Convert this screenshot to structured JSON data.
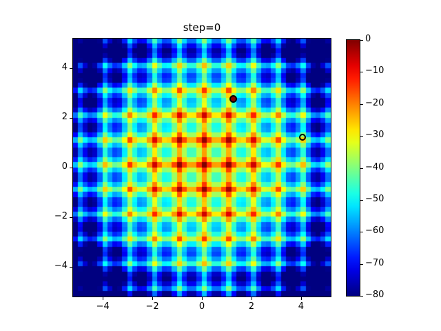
{
  "chart_data": {
    "type": "heatmap",
    "title": "step=0",
    "xlabel": "",
    "ylabel": "",
    "x_ticks": [
      -4,
      -2,
      0,
      2,
      4
    ],
    "y_ticks": [
      4,
      2,
      0,
      -2,
      -4
    ],
    "extent": {
      "xmin": -5.2,
      "xmax": 5.2,
      "ymin": -5.2,
      "ymax": 5.2
    },
    "grid_points": 52,
    "grid_step": 0.2,
    "colormap": "jet",
    "clim": [
      -80,
      0
    ],
    "colorbar_ticks": [
      0,
      -10,
      -20,
      -30,
      -40,
      -50,
      -60,
      -70,
      -80
    ],
    "value_model": {
      "description": "Periodic interference pattern in dB: val(x,y)=prof(res(x))+prof(res(y))-envelope_coef*(dx^2+dy^2), clipped to clim. Peaks on a 1.0-unit lattice offset by peak_lattice_offset; prof gives the dB level of the 5 grid cells per period (0.2 step).",
      "peak_lattice_offset": 0.1,
      "peak_spacing": 1.0,
      "profile_db": [
        0,
        -13,
        -22,
        -22,
        -13
      ],
      "envelope_coef": 1.55
    },
    "scatter_points": [
      {
        "name": "filled-marker",
        "x": 1.27,
        "y": 2.76,
        "fill": "#8b0000",
        "edge": "#000000",
        "size": 11
      },
      {
        "name": "open-marker",
        "x": 4.05,
        "y": 1.21,
        "fill": "none",
        "edge": "#000000",
        "size": 10
      }
    ],
    "grid": false,
    "legend": null
  },
  "colors": {
    "background": "#ffffff",
    "axes_edge": "#000000",
    "jet_stops": [
      "#000080",
      "#0000ff",
      "#00ffff",
      "#ffff00",
      "#ff0000",
      "#800000"
    ]
  }
}
